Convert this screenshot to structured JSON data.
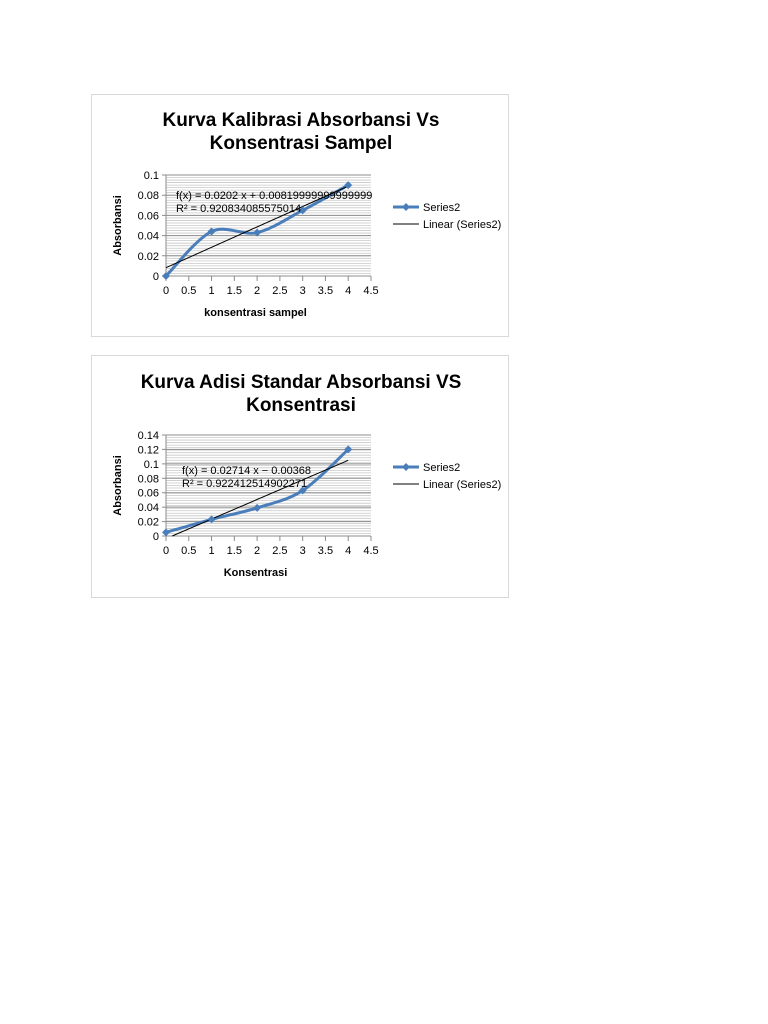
{
  "chart_data": [
    {
      "type": "line",
      "title": "Kurva Kalibrasi Absorbansi Vs\nKonsentrasi Sampel",
      "xlabel": "konsentrasi sampel",
      "ylabel": "Absorbansi",
      "xlim": [
        0,
        4.5
      ],
      "ylim": [
        0,
        0.1
      ],
      "xticks": [
        "0",
        "0.5",
        "1",
        "1.5",
        "2",
        "2.5",
        "3",
        "3.5",
        "4",
        "4.5"
      ],
      "yticks": [
        "0",
        "0.02",
        "0.04",
        "0.06",
        "0.08",
        "0.1"
      ],
      "grid": true,
      "legend": "right",
      "series": [
        {
          "name": "Series2",
          "x": [
            0,
            1,
            2,
            3,
            4
          ],
          "y": [
            0,
            0.044,
            0.043,
            0.065,
            0.09
          ],
          "color": "#4a7ebb",
          "smooth": true,
          "marker": "diamond"
        }
      ],
      "trendline": {
        "name": "Linear (Series2)",
        "slope": 0.0202,
        "intercept": 0.0082,
        "color": "#000000",
        "equation": "f(x) = 0.0202 x + 0.00819999999999999",
        "r2": "R² = 0.920834085575014"
      }
    },
    {
      "type": "line",
      "title": "Kurva Adisi Standar Absorbansi VS\nKonsentrasi",
      "xlabel": "Konsentrasi",
      "ylabel": "Absorbansi",
      "xlim": [
        0,
        4.5
      ],
      "ylim": [
        0,
        0.14
      ],
      "xticks": [
        "0",
        "0.5",
        "1",
        "1.5",
        "2",
        "2.5",
        "3",
        "3.5",
        "4",
        "4.5"
      ],
      "yticks": [
        "0",
        "0.02",
        "0.04",
        "0.06",
        "0.08",
        "0.1",
        "0.12",
        "0.14"
      ],
      "grid": true,
      "legend": "right",
      "series": [
        {
          "name": "Series2",
          "x": [
            0,
            1,
            2,
            3,
            4
          ],
          "y": [
            0.005,
            0.023,
            0.039,
            0.063,
            0.12
          ],
          "color": "#4a7ebb",
          "smooth": true,
          "marker": "diamond"
        }
      ],
      "trendline": {
        "name": "Linear (Series2)",
        "slope": 0.02714,
        "intercept": -0.00368,
        "color": "#000000",
        "equation": "f(x) = 0.02714 x − 0.00368",
        "r2": "R² = 0.922412514902271"
      }
    }
  ]
}
